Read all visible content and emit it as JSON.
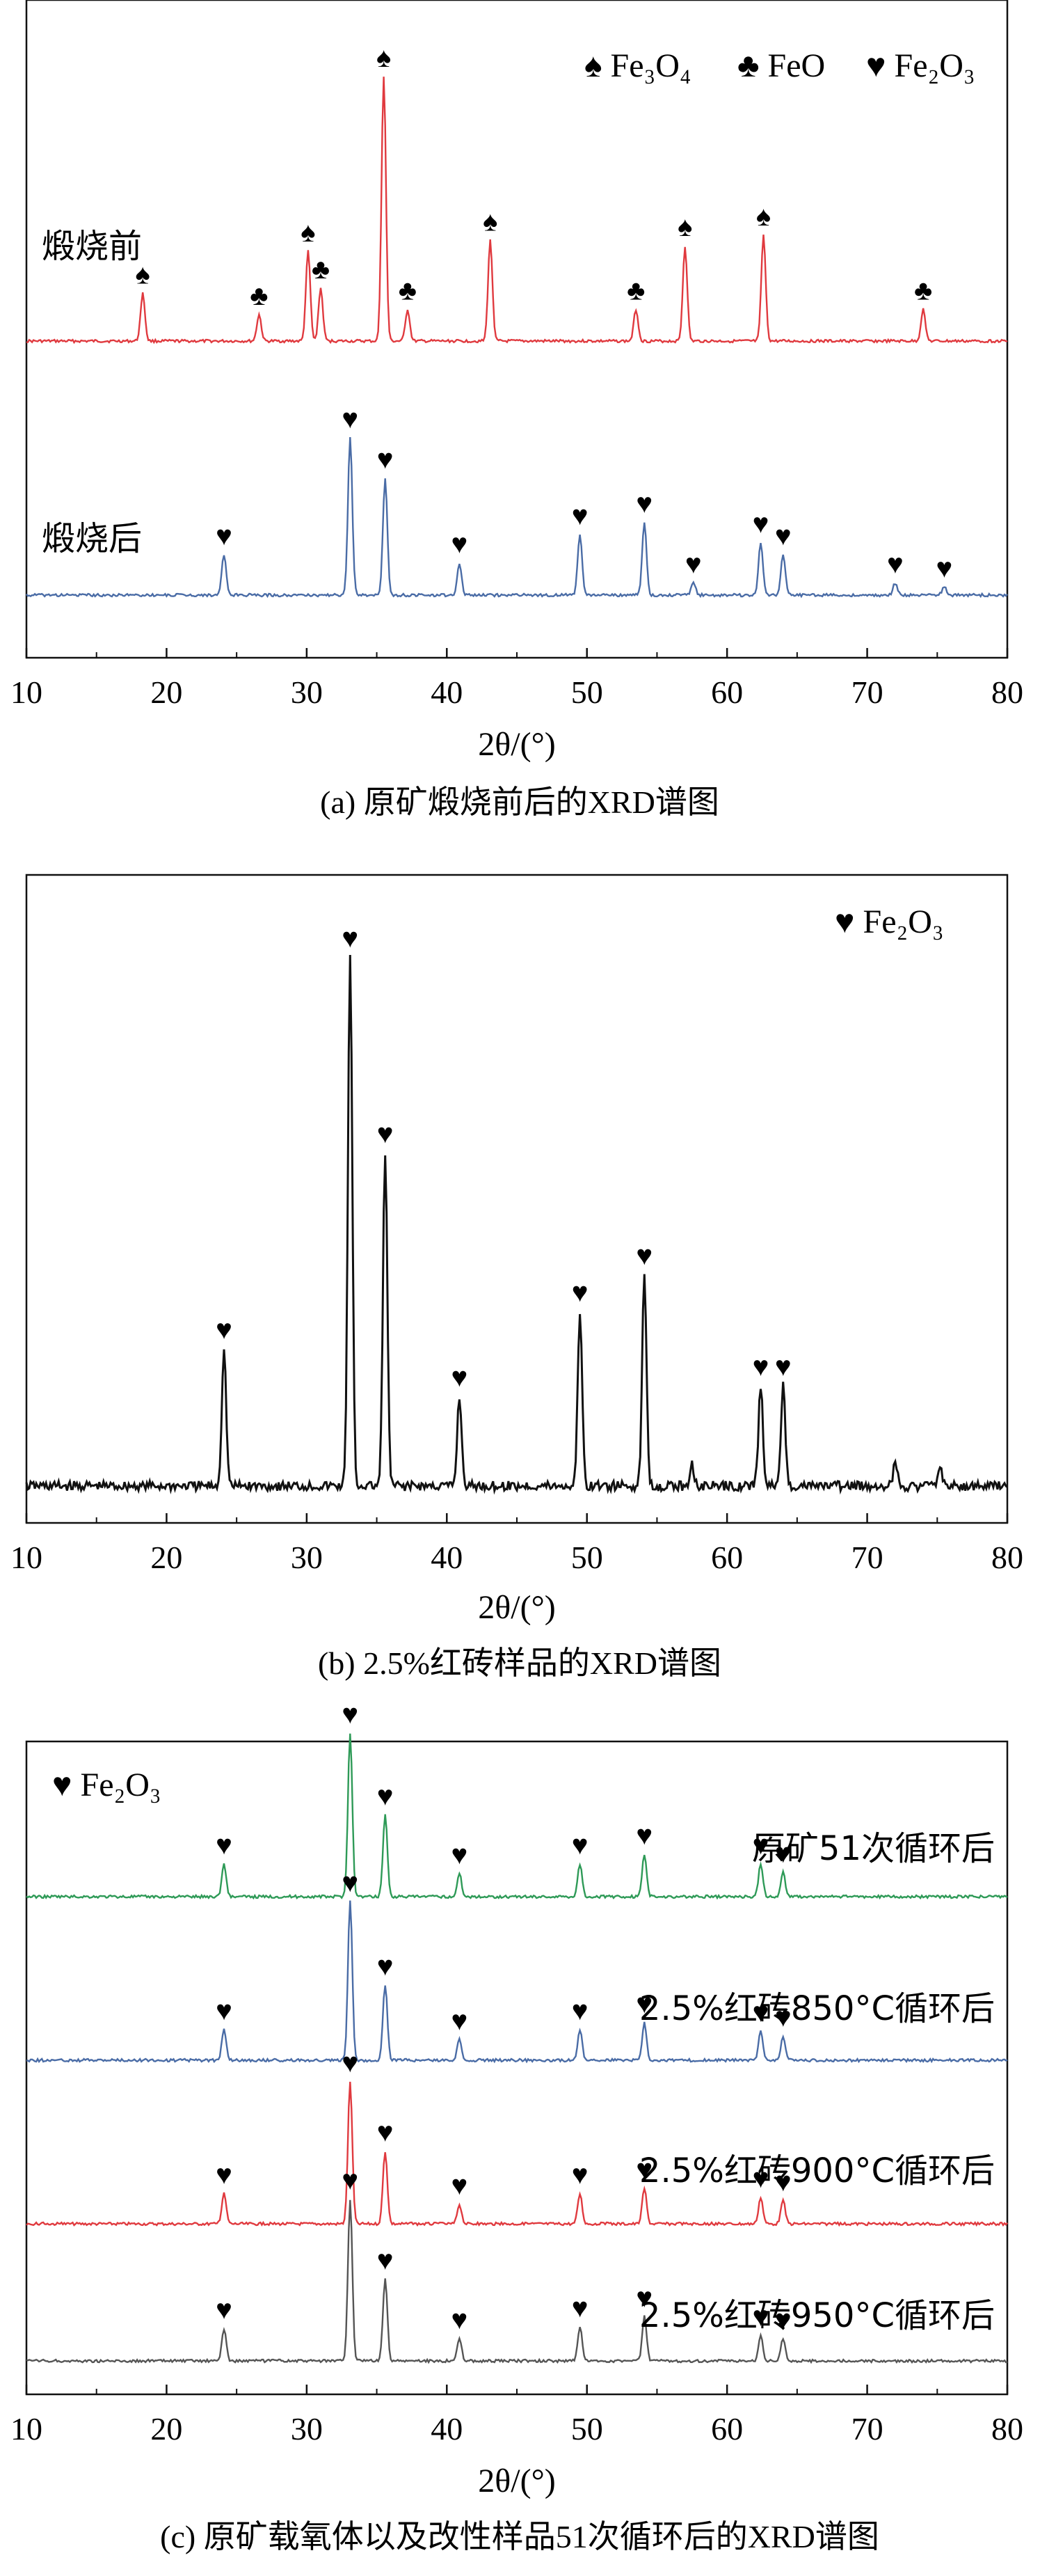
{
  "colors": {
    "red": "#e03a3f",
    "blue": "#4a6ca6",
    "black": "#111111",
    "green": "#2e9a57",
    "gray": "#555555"
  },
  "panels": [
    {
      "caption": "(a) 原矿煅烧前后的XRD谱图",
      "xlabel": "2θ/(°)",
      "legend": [
        {
          "symbol": "♠",
          "text": "Fe3O4"
        },
        {
          "symbol": "♣",
          "text": "FeO"
        },
        {
          "symbol": "♥",
          "text": "Fe2O3"
        }
      ]
    },
    {
      "caption": "(b) 2.5%红砖样品的XRD谱图",
      "xlabel": "2θ/(°)",
      "legend": [
        {
          "symbol": "♥",
          "text": "Fe2O3"
        }
      ]
    },
    {
      "caption": "(c) 原矿载氧体以及改性样品51次循环后的XRD谱图",
      "xlabel": "2θ/(°)",
      "legend": [
        {
          "symbol": "♥",
          "text": "Fe2O3"
        }
      ]
    }
  ],
  "chart_data": [
    {
      "type": "line",
      "xlabel": "2θ/(°)",
      "xlim": [
        10,
        80
      ],
      "xticks": [
        10,
        20,
        30,
        40,
        50,
        60,
        70,
        80
      ],
      "yticks_shown": false,
      "series": [
        {
          "name": "煅烧前",
          "color": "red",
          "peaks": [
            {
              "x": 18.3,
              "h": 0.18,
              "phase": "Fe3O4"
            },
            {
              "x": 26.6,
              "h": 0.1,
              "phase": "FeO"
            },
            {
              "x": 30.1,
              "h": 0.34,
              "phase": "Fe3O4"
            },
            {
              "x": 31.0,
              "h": 0.2,
              "phase": "FeO"
            },
            {
              "x": 35.5,
              "h": 1.0,
              "phase": "Fe3O4"
            },
            {
              "x": 37.2,
              "h": 0.12,
              "phase": "FeO"
            },
            {
              "x": 43.1,
              "h": 0.38,
              "phase": "Fe3O4"
            },
            {
              "x": 53.5,
              "h": 0.12,
              "phase": "FeO"
            },
            {
              "x": 57.0,
              "h": 0.36,
              "phase": "Fe3O4"
            },
            {
              "x": 62.6,
              "h": 0.4,
              "phase": "Fe3O4"
            },
            {
              "x": 74.0,
              "h": 0.12,
              "phase": "FeO"
            }
          ]
        },
        {
          "name": "煅烧后",
          "color": "blue",
          "peaks": [
            {
              "x": 24.1,
              "h": 0.2,
              "phase": "Fe2O3"
            },
            {
              "x": 33.1,
              "h": 0.78,
              "phase": "Fe2O3"
            },
            {
              "x": 35.6,
              "h": 0.58,
              "phase": "Fe2O3"
            },
            {
              "x": 40.9,
              "h": 0.16,
              "phase": "Fe2O3"
            },
            {
              "x": 49.5,
              "h": 0.3,
              "phase": "Fe2O3"
            },
            {
              "x": 54.1,
              "h": 0.36,
              "phase": "Fe2O3"
            },
            {
              "x": 57.6,
              "h": 0.06,
              "phase": "Fe2O3"
            },
            {
              "x": 62.4,
              "h": 0.26,
              "phase": "Fe2O3"
            },
            {
              "x": 64.0,
              "h": 0.2,
              "phase": "Fe2O3"
            },
            {
              "x": 72.0,
              "h": 0.06,
              "phase": "Fe2O3"
            },
            {
              "x": 75.5,
              "h": 0.04,
              "phase": "Fe2O3"
            }
          ]
        }
      ]
    },
    {
      "type": "line",
      "xlabel": "2θ/(°)",
      "xlim": [
        10,
        80
      ],
      "xticks": [
        10,
        20,
        30,
        40,
        50,
        60,
        70,
        80
      ],
      "yticks_shown": false,
      "series": [
        {
          "name": "2.5%红砖",
          "color": "black",
          "peaks": [
            {
              "x": 24.1,
              "h": 0.26,
              "phase": "Fe2O3"
            },
            {
              "x": 33.1,
              "h": 1.0,
              "phase": "Fe2O3"
            },
            {
              "x": 35.6,
              "h": 0.63,
              "phase": "Fe2O3"
            },
            {
              "x": 40.9,
              "h": 0.17,
              "phase": "Fe2O3"
            },
            {
              "x": 49.5,
              "h": 0.33,
              "phase": "Fe2O3"
            },
            {
              "x": 54.1,
              "h": 0.4,
              "phase": "Fe2O3"
            },
            {
              "x": 57.5,
              "h": 0.04,
              "phase": ""
            },
            {
              "x": 62.4,
              "h": 0.19,
              "phase": "Fe2O3"
            },
            {
              "x": 64.0,
              "h": 0.19,
              "phase": "Fe2O3"
            },
            {
              "x": 72.0,
              "h": 0.04,
              "phase": ""
            },
            {
              "x": 75.2,
              "h": 0.04,
              "phase": ""
            }
          ]
        }
      ]
    },
    {
      "type": "line",
      "xlabel": "2θ/(°)",
      "xlim": [
        10,
        80
      ],
      "xticks": [
        10,
        20,
        30,
        40,
        50,
        60,
        70,
        80
      ],
      "yticks_shown": false,
      "series": [
        {
          "name": "原矿51次循环后",
          "color": "green",
          "peaks": [
            {
              "x": 24.1,
              "h": 0.2,
              "phase": "Fe2O3"
            },
            {
              "x": 33.1,
              "h": 1.0,
              "phase": "Fe2O3"
            },
            {
              "x": 35.6,
              "h": 0.5,
              "phase": "Fe2O3"
            },
            {
              "x": 40.9,
              "h": 0.14,
              "phase": "Fe2O3"
            },
            {
              "x": 49.5,
              "h": 0.2,
              "phase": "Fe2O3"
            },
            {
              "x": 54.1,
              "h": 0.26,
              "phase": "Fe2O3"
            },
            {
              "x": 62.4,
              "h": 0.2,
              "phase": "Fe2O3"
            },
            {
              "x": 64.0,
              "h": 0.15,
              "phase": "Fe2O3"
            }
          ]
        },
        {
          "name": "2.5%红砖850°C循环后",
          "color": "blue",
          "peaks": [
            {
              "x": 24.1,
              "h": 0.18,
              "phase": "Fe2O3"
            },
            {
              "x": 33.1,
              "h": 0.93,
              "phase": "Fe2O3"
            },
            {
              "x": 35.6,
              "h": 0.44,
              "phase": "Fe2O3"
            },
            {
              "x": 40.9,
              "h": 0.12,
              "phase": "Fe2O3"
            },
            {
              "x": 49.5,
              "h": 0.18,
              "phase": "Fe2O3"
            },
            {
              "x": 54.1,
              "h": 0.22,
              "phase": "Fe2O3"
            },
            {
              "x": 62.4,
              "h": 0.17,
              "phase": "Fe2O3"
            },
            {
              "x": 64.0,
              "h": 0.14,
              "phase": "Fe2O3"
            }
          ]
        },
        {
          "name": "2.5%红砖900°C循环后",
          "color": "red",
          "peaks": [
            {
              "x": 24.1,
              "h": 0.17,
              "phase": "Fe2O3"
            },
            {
              "x": 33.1,
              "h": 0.8,
              "phase": "Fe2O3"
            },
            {
              "x": 35.6,
              "h": 0.41,
              "phase": "Fe2O3"
            },
            {
              "x": 40.9,
              "h": 0.11,
              "phase": "Fe2O3"
            },
            {
              "x": 49.5,
              "h": 0.17,
              "phase": "Fe2O3"
            },
            {
              "x": 54.1,
              "h": 0.2,
              "phase": "Fe2O3"
            },
            {
              "x": 62.4,
              "h": 0.15,
              "phase": "Fe2O3"
            },
            {
              "x": 64.0,
              "h": 0.13,
              "phase": "Fe2O3"
            }
          ]
        },
        {
          "name": "2.5%红砖950°C循环后",
          "color": "gray",
          "peaks": [
            {
              "x": 24.1,
              "h": 0.19,
              "phase": "Fe2O3"
            },
            {
              "x": 33.1,
              "h": 0.95,
              "phase": "Fe2O3"
            },
            {
              "x": 35.6,
              "h": 0.48,
              "phase": "Fe2O3"
            },
            {
              "x": 40.9,
              "h": 0.13,
              "phase": "Fe2O3"
            },
            {
              "x": 49.5,
              "h": 0.2,
              "phase": "Fe2O3"
            },
            {
              "x": 54.1,
              "h": 0.26,
              "phase": "Fe2O3"
            },
            {
              "x": 62.4,
              "h": 0.15,
              "phase": "Fe2O3"
            },
            {
              "x": 64.0,
              "h": 0.13,
              "phase": "Fe2O3"
            }
          ]
        }
      ]
    }
  ]
}
